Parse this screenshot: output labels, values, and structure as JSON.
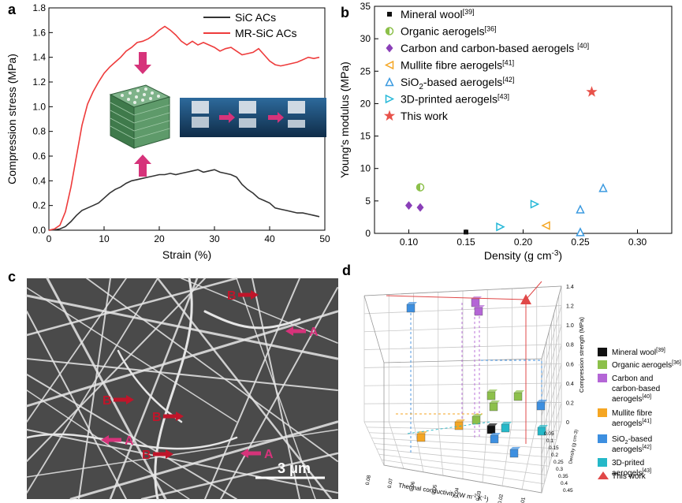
{
  "panels": {
    "a": {
      "label": "a"
    },
    "b": {
      "label": "b"
    },
    "c": {
      "label": "c"
    },
    "d": {
      "label": "d"
    }
  },
  "chart_data": [
    {
      "type": "line",
      "panel": "a",
      "xlabel": "Strain (%)",
      "ylabel": "Compression stress (MPa)",
      "xlim": [
        0,
        50
      ],
      "ylim": [
        0,
        1.8
      ],
      "xticks": [
        0,
        10,
        20,
        30,
        40,
        50
      ],
      "yticks": [
        0.0,
        0.2,
        0.4,
        0.6,
        0.8,
        1.0,
        1.2,
        1.4,
        1.6,
        1.8
      ],
      "legend_position": "top-right",
      "series": [
        {
          "name": "SiC ACs",
          "color": "#333333",
          "x": [
            0,
            1,
            2,
            3,
            4,
            5,
            6,
            7,
            8,
            9,
            10,
            11,
            12,
            13,
            14,
            15,
            16,
            17,
            18,
            19,
            20,
            21,
            22,
            23,
            24,
            25,
            26,
            27,
            28,
            29,
            30,
            31,
            32,
            33,
            34,
            35,
            36,
            37,
            38,
            39,
            40,
            41,
            42,
            43,
            44,
            45,
            46,
            47,
            48,
            49
          ],
          "y": [
            0,
            0.003,
            0.01,
            0.03,
            0.07,
            0.12,
            0.16,
            0.18,
            0.2,
            0.22,
            0.26,
            0.3,
            0.33,
            0.35,
            0.38,
            0.4,
            0.41,
            0.42,
            0.43,
            0.44,
            0.45,
            0.45,
            0.46,
            0.45,
            0.46,
            0.47,
            0.48,
            0.49,
            0.47,
            0.48,
            0.49,
            0.47,
            0.46,
            0.45,
            0.43,
            0.37,
            0.33,
            0.3,
            0.26,
            0.24,
            0.22,
            0.18,
            0.17,
            0.16,
            0.15,
            0.14,
            0.14,
            0.13,
            0.12,
            0.11
          ]
        },
        {
          "name": "MR-SiC ACs",
          "color": "#ee3b3b",
          "x": [
            0,
            1,
            2,
            3,
            4,
            5,
            6,
            7,
            8,
            9,
            10,
            11,
            12,
            13,
            14,
            15,
            16,
            17,
            18,
            19,
            20,
            21,
            22,
            23,
            24,
            25,
            26,
            27,
            28,
            29,
            30,
            31,
            32,
            33,
            34,
            35,
            36,
            37,
            38,
            39,
            40,
            41,
            42,
            43,
            44,
            45,
            46,
            47,
            48,
            49
          ],
          "y": [
            0,
            0.01,
            0.04,
            0.15,
            0.35,
            0.6,
            0.85,
            1.02,
            1.12,
            1.2,
            1.27,
            1.32,
            1.36,
            1.4,
            1.45,
            1.48,
            1.52,
            1.53,
            1.55,
            1.58,
            1.62,
            1.65,
            1.62,
            1.58,
            1.53,
            1.5,
            1.53,
            1.5,
            1.52,
            1.5,
            1.48,
            1.45,
            1.47,
            1.48,
            1.45,
            1.42,
            1.43,
            1.44,
            1.47,
            1.42,
            1.37,
            1.34,
            1.33,
            1.34,
            1.35,
            1.36,
            1.38,
            1.4,
            1.39,
            1.4
          ]
        }
      ]
    },
    {
      "type": "scatter",
      "panel": "b",
      "xlabel": "Density (g cm",
      "xlabel_sup": "-3",
      "xlabel_end": ")",
      "ylabel": "Young's modulus (MPa)",
      "xlim": [
        0.07,
        0.33
      ],
      "ylim": [
        0,
        35
      ],
      "xticks": [
        0.1,
        0.15,
        0.2,
        0.25,
        0.3
      ],
      "yticks": [
        0,
        5,
        10,
        15,
        20,
        25,
        30,
        35
      ],
      "legend_position": "top-left",
      "series": [
        {
          "name": "Mineral wool",
          "ref": "[39]",
          "marker": "square",
          "color": "#111111",
          "points": [
            [
              0.15,
              0.2
            ]
          ]
        },
        {
          "name": "Organic aerogels",
          "ref": "[36]",
          "marker": "circle",
          "color": "#8cc04a",
          "points": [
            [
              0.11,
              7.1
            ]
          ]
        },
        {
          "name": "Carbon and carbon-based aerogels ",
          "ref": "[40]",
          "marker": "diamond",
          "color": "#8a3fb8",
          "points": [
            [
              0.1,
              4.3
            ],
            [
              0.11,
              4.0
            ]
          ]
        },
        {
          "name": "Mullite fibre aerogels",
          "ref": "[41]",
          "marker": "tri-left",
          "color": "#f5a623",
          "points": [
            [
              0.22,
              1.2
            ]
          ]
        },
        {
          "name": "SiO",
          "name_sub": "2",
          "name_end": "-based aerogels",
          "ref": "[42]",
          "marker": "tri-up",
          "color": "#3d9be0",
          "points": [
            [
              0.25,
              0.2
            ],
            [
              0.25,
              3.7
            ],
            [
              0.27,
              7.0
            ]
          ]
        },
        {
          "name": "3D-printed aerogels",
          "ref": "[43]",
          "marker": "tri-right",
          "color": "#25b8d8",
          "points": [
            [
              0.18,
              1.0
            ],
            [
              0.21,
              4.5
            ]
          ]
        },
        {
          "name": "This work",
          "ref": "",
          "marker": "star",
          "color": "#e8524a",
          "points": [
            [
              0.26,
              21.8
            ]
          ]
        }
      ]
    },
    {
      "type": "scatter",
      "panel": "d",
      "xlabel": "Thermal conductivity (W m",
      "xlabel_sup": "-1",
      "xlabel_mid": " K",
      "xlabel_sup2": "-1",
      "xlabel_end": ")",
      "ylabel": "Density (g cm",
      "ylabel_sup": "-3",
      "ylabel_end": ")",
      "zlabel": "Compression strength (MPa)",
      "zticks": [
        "0",
        "0.2",
        "0.4",
        "0.6",
        "0.8",
        "1.0",
        "1.2",
        "1.4"
      ],
      "yticks": [
        "0.05",
        "0.1",
        "0.15",
        "0.2",
        "0.25",
        "0.3",
        "0.35",
        "0.4",
        "0.45"
      ],
      "xticks": [
        "0.08",
        "0.07",
        "0.06",
        "0.05",
        "0.04",
        "0.03",
        "0.02",
        "0.01"
      ],
      "legend_position": "right",
      "legend": [
        {
          "name": "Mineral wool",
          "ref": "[39]",
          "color": "#111111",
          "shape": "square"
        },
        {
          "name": "Organic aerogels",
          "ref": "[36]",
          "color": "#8cc04a",
          "shape": "square"
        },
        {
          "name": "Carbon and carbon-based aerogels",
          "ref": "[40]",
          "color": "#b466d6",
          "shape": "square"
        },
        {
          "name": "Mullite fibre aerogels",
          "ref": "[41]",
          "color": "#f5a623",
          "shape": "square"
        },
        {
          "name": "SiO",
          "name_sub": "2",
          "name_end": "-based aerogels",
          "ref": "[42]",
          "color": "#3d8fe0",
          "shape": "square"
        },
        {
          "name": "3D-prited aerogels",
          "ref": "[43]",
          "color": "#25b8c8",
          "shape": "square"
        },
        {
          "name": "This work",
          "ref": "",
          "color": "#e04848",
          "shape": "triangle"
        }
      ]
    }
  ],
  "sem": {
    "scale_bar": "3 μm",
    "labels": [
      "B",
      "A",
      "B",
      "B",
      "A",
      "B",
      "A"
    ]
  },
  "colors": {
    "accent_red": "#e8524a",
    "arrow_magenta": "#d6337a",
    "arrow_darkred": "#c0152a"
  }
}
